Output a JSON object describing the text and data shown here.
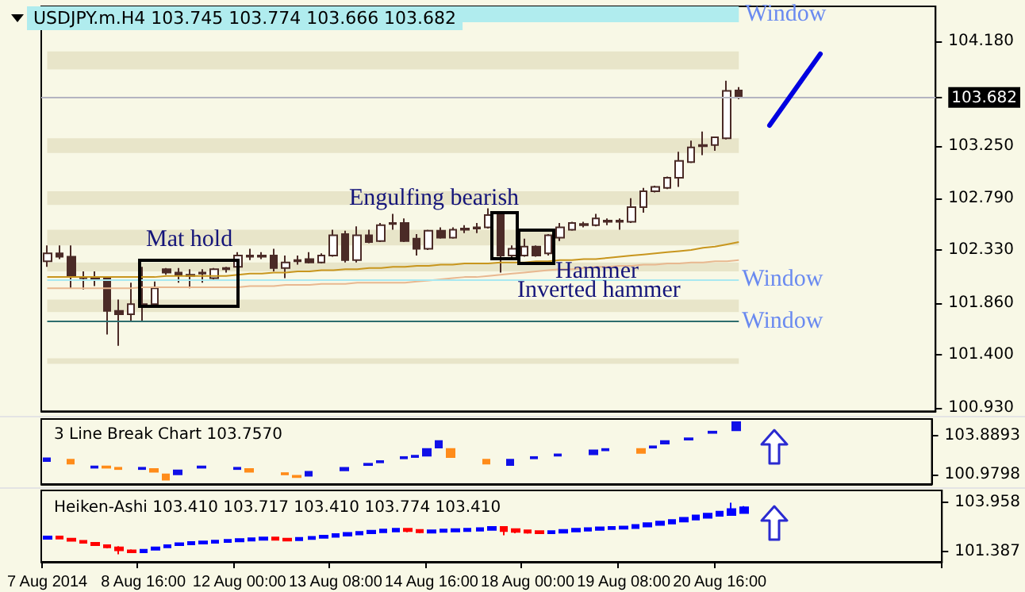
{
  "chart_data": [
    {
      "type": "candlestick",
      "title": "USDJPY.m.H4 103.745 103.774 103.666 103.682",
      "categories": [
        null,
        null,
        null,
        null,
        null,
        null,
        null,
        null,
        null,
        null,
        null,
        null,
        null,
        null,
        null,
        null,
        null,
        null,
        null,
        null,
        null,
        null,
        null,
        null,
        null,
        null,
        null,
        null,
        null,
        null,
        null,
        null,
        null,
        null,
        null,
        null,
        null,
        null,
        null,
        null,
        null,
        null,
        null,
        null,
        null,
        null,
        null,
        null,
        null,
        null,
        null,
        null,
        null,
        null,
        null,
        null,
        null,
        null,
        null,
        null,
        null,
        null,
        null,
        null,
        null,
        null,
        null,
        null,
        null,
        null,
        null,
        null,
        null,
        null,
        null
      ],
      "series": [
        {
          "type": "candlestick",
          "color": "#4b2b27",
          "ohlc": [
            [
              102.23,
              102.37,
              102.18,
              102.3
            ],
            [
              102.3,
              102.37,
              102.25,
              102.27
            ],
            [
              102.27,
              102.37,
              101.99,
              102.09
            ],
            [
              102.09,
              102.14,
              101.98,
              102.08
            ],
            [
              102.08,
              102.14,
              102.01,
              102.07
            ],
            [
              102.08,
              102.09,
              101.58,
              101.79
            ],
            [
              101.79,
              101.89,
              101.48,
              101.76
            ],
            [
              101.76,
              102.04,
              101.69,
              101.85
            ],
            [
              101.85,
              102.18,
              101.69,
              101.83
            ],
            [
              101.85,
              102.05,
              101.84,
              101.99
            ],
            [
              102.16,
              102.17,
              102.11,
              102.13
            ],
            [
              102.13,
              102.17,
              102.04,
              102.11
            ],
            [
              102.11,
              102.16,
              101.99,
              102.1
            ],
            [
              102.13,
              102.16,
              102.04,
              102.12
            ],
            [
              102.08,
              102.17,
              102.07,
              102.16
            ],
            [
              102.16,
              102.18,
              102.13,
              102.17
            ],
            [
              102.18,
              102.31,
              102.17,
              102.28
            ],
            [
              102.28,
              102.34,
              102.24,
              102.27
            ],
            [
              102.27,
              102.31,
              102.25,
              102.28
            ],
            [
              102.28,
              102.34,
              102.14,
              102.17
            ],
            [
              102.17,
              102.28,
              102.08,
              102.22
            ],
            [
              102.23,
              102.28,
              102.2,
              102.24
            ],
            [
              102.25,
              102.31,
              102.21,
              102.22
            ],
            [
              102.22,
              102.3,
              102.21,
              102.28
            ],
            [
              102.28,
              102.51,
              102.27,
              102.46
            ],
            [
              102.47,
              102.5,
              102.22,
              102.24
            ],
            [
              102.24,
              102.54,
              102.22,
              102.46
            ],
            [
              102.46,
              102.51,
              102.39,
              102.4
            ],
            [
              102.41,
              102.57,
              102.4,
              102.55
            ],
            [
              102.56,
              102.65,
              102.51,
              102.57
            ],
            [
              102.57,
              102.61,
              102.4,
              102.41
            ],
            [
              102.43,
              102.47,
              102.28,
              102.34
            ],
            [
              102.34,
              102.51,
              102.33,
              102.5
            ],
            [
              102.5,
              102.53,
              102.43,
              102.44
            ],
            [
              102.44,
              102.53,
              102.43,
              102.51
            ],
            [
              102.51,
              102.55,
              102.48,
              102.52
            ],
            [
              102.52,
              102.57,
              102.48,
              102.53
            ],
            [
              102.53,
              102.7,
              102.52,
              102.64
            ],
            [
              102.64,
              102.66,
              102.13,
              102.28
            ],
            [
              102.28,
              102.37,
              102.25,
              102.34
            ],
            [
              102.28,
              102.43,
              102.27,
              102.36
            ],
            [
              102.36,
              102.37,
              102.27,
              102.28
            ],
            [
              102.3,
              102.47,
              102.28,
              102.46
            ],
            [
              102.44,
              102.57,
              102.41,
              102.53
            ],
            [
              102.51,
              102.58,
              102.5,
              102.57
            ],
            [
              102.55,
              102.58,
              102.53,
              102.56
            ],
            [
              102.55,
              102.65,
              102.54,
              102.61
            ],
            [
              102.58,
              102.61,
              102.55,
              102.59
            ],
            [
              102.59,
              102.61,
              102.51,
              102.58
            ],
            [
              102.58,
              102.79,
              102.57,
              102.71
            ],
            [
              102.71,
              102.88,
              102.66,
              102.85
            ],
            [
              102.85,
              102.9,
              102.84,
              102.89
            ],
            [
              102.88,
              102.98,
              102.87,
              102.97
            ],
            [
              102.97,
              103.2,
              102.89,
              103.12
            ],
            [
              103.11,
              103.3,
              103.1,
              103.24
            ],
            [
              103.25,
              103.38,
              103.17,
              103.26
            ],
            [
              103.26,
              103.33,
              103.21,
              103.33
            ],
            [
              103.32,
              103.83,
              103.31,
              103.74
            ],
            [
              103.745,
              103.774,
              103.666,
              103.682
            ],
            null,
            null,
            null,
            null,
            null,
            null,
            null,
            null,
            null,
            null,
            null,
            null,
            null,
            null,
            null,
            null
          ]
        },
        {
          "type": "line",
          "color": "#c8961e",
          "values": [
            102.09,
            102.09,
            102.09,
            102.09,
            102.09,
            102.09,
            102.09,
            102.09,
            102.09,
            102.09,
            102.1,
            102.1,
            102.1,
            102.1,
            102.1,
            102.1,
            102.11,
            102.12,
            102.12,
            102.13,
            102.13,
            102.14,
            102.14,
            102.15,
            102.15,
            102.16,
            102.16,
            102.17,
            102.17,
            102.18,
            102.18,
            102.19,
            102.19,
            102.2,
            102.2,
            102.21,
            102.21,
            102.21,
            102.22,
            102.22,
            102.22,
            102.23,
            102.23,
            102.24,
            102.24,
            102.25,
            102.25,
            102.26,
            102.27,
            102.28,
            102.29,
            102.3,
            102.31,
            102.32,
            102.33,
            102.35,
            102.36,
            102.38,
            102.4,
            null,
            null,
            null,
            null,
            null,
            null,
            null,
            null,
            null,
            null,
            null,
            null,
            null,
            null,
            null,
            null
          ]
        },
        {
          "type": "line",
          "color": "#e8b890",
          "values": [
            101.99,
            101.99,
            101.99,
            101.99,
            101.99,
            101.99,
            101.99,
            101.99,
            102.0,
            102.0,
            102.0,
            102.0,
            102.0,
            102.0,
            102.0,
            102.0,
            102.0,
            102.01,
            102.01,
            102.01,
            102.02,
            102.02,
            102.02,
            102.03,
            102.03,
            102.03,
            102.04,
            102.04,
            102.04,
            102.04,
            102.04,
            102.05,
            102.06,
            102.07,
            102.08,
            102.09,
            102.09,
            102.1,
            102.11,
            102.12,
            102.13,
            102.14,
            102.15,
            102.16,
            102.16,
            102.17,
            102.18,
            102.18,
            102.19,
            102.19,
            102.2,
            102.2,
            102.21,
            102.21,
            102.22,
            102.22,
            102.23,
            102.23,
            102.24,
            null,
            null,
            null,
            null,
            null,
            null,
            null,
            null,
            null,
            null,
            null,
            null,
            null,
            null,
            null,
            null
          ]
        }
      ],
      "ylim": [
        100.9,
        104.49
      ],
      "yticks": [
        {
          "value": 104.18,
          "label": "104.180"
        },
        {
          "value": 103.682,
          "label": "103.682"
        },
        {
          "value": 103.25,
          "label": "103.250"
        },
        {
          "value": 102.79,
          "label": "102.790"
        },
        {
          "value": 102.33,
          "label": "102.330"
        },
        {
          "value": 101.86,
          "label": "101.860"
        },
        {
          "value": 101.4,
          "label": "101.400"
        },
        {
          "value": 100.93,
          "label": "100.930"
        }
      ],
      "tick_labels": "y",
      "ref_lines": [
        {
          "axis": "y",
          "value": 102.07,
          "label": "Window",
          "color": "#a8e8f0"
        },
        {
          "axis": "y",
          "value": 101.7,
          "label": "Window",
          "color": "#2e6e6e"
        },
        {
          "axis": "y",
          "value": 103.682,
          "color": "#b4b4c0"
        }
      ],
      "bands": [
        {
          "axis": "y",
          "from": 104.35,
          "to": 104.49,
          "label": "Window",
          "color": "#b0ecee"
        },
        {
          "axis": "y",
          "from": 103.93,
          "to": 104.09,
          "color": "#e8e5c9"
        },
        {
          "axis": "y",
          "from": 103.19,
          "to": 103.32,
          "color": "#e8e5c9"
        },
        {
          "axis": "y",
          "from": 102.73,
          "to": 102.85,
          "color": "#e8e5c9"
        },
        {
          "axis": "y",
          "from": 102.37,
          "to": 102.51,
          "color": "#e8e5c9"
        },
        {
          "axis": "y",
          "from": 102.14,
          "to": 102.22,
          "color": "#e8e5c9"
        },
        {
          "axis": "y",
          "from": 101.78,
          "to": 101.89,
          "color": "#e8e5c9"
        },
        {
          "axis": "y",
          "from": 101.32,
          "to": 101.37,
          "color": "#e8e5c9"
        }
      ],
      "annotations": [
        "Mat hold",
        "Engulfing bearish",
        "Hammer",
        "Inverted hammer"
      ]
    },
    {
      "type": "candlestick",
      "title": "3 Line Break Chart 103.7570",
      "categories": [
        null,
        null,
        null,
        null,
        null,
        null,
        null,
        null,
        null,
        null,
        null,
        null,
        null,
        null,
        null,
        null,
        null,
        null,
        null,
        null,
        null,
        null,
        null,
        null,
        null,
        null,
        null,
        null,
        null,
        null,
        null,
        null,
        null,
        null,
        null,
        null,
        null,
        null,
        null,
        null,
        null,
        null,
        null,
        null,
        null,
        null,
        null,
        null,
        null,
        null,
        null,
        null,
        null,
        null,
        null,
        null,
        null,
        null,
        null,
        null,
        null,
        null,
        null,
        null,
        null,
        null,
        null,
        null,
        null,
        null,
        null,
        null,
        null,
        null,
        null
      ],
      "ohlc": [
        [
          102.0,
          102.2,
          102.0,
          102.2
        ],
        null,
        [
          102.1,
          102.1,
          101.8,
          101.8
        ],
        null,
        [
          101.5,
          101.6,
          101.5,
          101.6
        ],
        [
          101.6,
          101.6,
          101.5,
          101.5
        ],
        [
          101.5,
          101.5,
          101.4,
          101.4
        ],
        null,
        [
          101.4,
          101.5,
          101.4,
          101.5
        ],
        [
          101.4,
          101.4,
          101.2,
          101.2
        ],
        [
          101.0,
          101.0,
          100.6,
          100.6
        ],
        [
          101.0,
          101.3,
          101.0,
          101.3
        ],
        null,
        [
          101.5,
          101.6,
          101.5,
          101.6
        ],
        null,
        null,
        [
          101.4,
          101.5,
          101.4,
          101.5
        ],
        [
          101.4,
          101.4,
          101.2,
          101.2
        ],
        null,
        null,
        [
          101.1,
          101.1,
          101.0,
          101.0
        ],
        [
          100.9,
          100.9,
          100.8,
          100.8
        ],
        [
          100.9,
          101.2,
          100.9,
          101.2
        ],
        null,
        null,
        [
          101.3,
          101.5,
          101.3,
          101.5
        ],
        null,
        [
          101.7,
          101.8,
          101.7,
          101.8
        ],
        [
          101.9,
          102.0,
          101.9,
          102.0
        ],
        null,
        [
          102.2,
          102.3,
          102.2,
          102.3
        ],
        [
          102.3,
          102.4,
          102.3,
          102.4
        ],
        [
          102.4,
          102.9,
          102.4,
          102.9
        ],
        [
          103.0,
          103.5,
          103.0,
          103.5
        ],
        [
          102.9,
          102.9,
          102.3,
          102.3
        ],
        null,
        null,
        [
          102.1,
          102.1,
          101.8,
          101.8
        ],
        null,
        [
          101.7,
          102.1,
          101.7,
          102.1
        ],
        null,
        [
          102.2,
          102.3,
          102.2,
          102.3
        ],
        null,
        [
          102.4,
          102.5,
          102.4,
          102.5
        ],
        null,
        null,
        [
          102.5,
          102.8,
          102.5,
          102.8
        ],
        [
          102.8,
          102.9,
          102.8,
          102.9
        ],
        null,
        null,
        [
          102.9,
          102.9,
          102.6,
          102.6
        ],
        [
          103.0,
          103.1,
          103.0,
          103.1
        ],
        [
          103.3,
          103.5,
          103.3,
          103.5
        ],
        null,
        [
          103.6,
          103.7,
          103.6,
          103.7
        ],
        null,
        [
          104.1,
          104.2,
          104.1,
          104.2
        ],
        null,
        [
          104.3,
          104.9,
          104.3,
          104.9
        ],
        null,
        null,
        null,
        null,
        null,
        null,
        null,
        null,
        null,
        null,
        null,
        null,
        null,
        null,
        null,
        null
      ],
      "colors": [
        "#1010e8",
        null,
        "#ff8c1a",
        null,
        "#1010e8",
        "#ff8c1a",
        "#ff8c1a",
        null,
        "#1010e8",
        "#ff8c1a",
        "#ff8c1a",
        "#1010e8",
        null,
        "#1010e8",
        null,
        null,
        "#1010e8",
        "#ff8c1a",
        null,
        null,
        "#ff8c1a",
        "#ff8c1a",
        "#1010e8",
        null,
        null,
        "#1010e8",
        null,
        "#1010e8",
        "#1010e8",
        null,
        "#1010e8",
        "#1010e8",
        "#1010e8",
        "#1010e8",
        "#ff8c1a",
        null,
        null,
        "#ff8c1a",
        null,
        "#1010e8",
        null,
        "#1010e8",
        null,
        "#1010e8",
        null,
        null,
        "#1010e8",
        "#1010e8",
        null,
        null,
        "#ff8c1a",
        "#1010e8",
        "#1010e8",
        null,
        "#1010e8",
        null,
        "#1010e8",
        null,
        "#1010e8",
        null,
        null,
        null,
        null,
        null,
        null,
        null,
        null,
        null,
        null,
        null,
        null,
        null,
        null,
        null,
        null
      ],
      "ylim": [
        100.28,
        105.14
      ],
      "yticks": [
        {
          "value": 103.8893,
          "label": "103.8893"
        },
        {
          "value": 100.9798,
          "label": "100.9798"
        }
      ],
      "tick_labels": "y"
    },
    {
      "type": "candlestick",
      "title": "Heiken-Ashi 103.410 103.717 103.410 103.774 103.410",
      "categories": [
        "7 Aug 2014",
        null,
        null,
        null,
        null,
        null,
        null,
        null,
        "8 Aug 16:00",
        null,
        null,
        null,
        null,
        null,
        null,
        null,
        "12 Aug 00:00",
        null,
        null,
        null,
        null,
        null,
        null,
        null,
        "13 Aug 08:00",
        null,
        null,
        null,
        null,
        null,
        null,
        null,
        "14 Aug 16:00",
        null,
        null,
        null,
        null,
        null,
        null,
        null,
        "18 Aug 00:00",
        null,
        null,
        null,
        null,
        null,
        null,
        null,
        "19 Aug 08:00",
        null,
        null,
        null,
        null,
        null,
        null,
        null,
        "20 Aug 16:00",
        null,
        null,
        null,
        null,
        null,
        null,
        null,
        null,
        null,
        null,
        null,
        null,
        null,
        null,
        null,
        null,
        null,
        null
      ],
      "ohlc": [
        [
          102.05,
          102.22,
          102.02,
          102.18
        ],
        [
          102.18,
          102.2,
          102.02,
          102.06
        ],
        [
          102.06,
          102.1,
          101.92,
          101.95
        ],
        [
          101.95,
          101.98,
          101.8,
          101.84
        ],
        [
          101.84,
          101.88,
          101.7,
          101.72
        ],
        [
          101.72,
          101.76,
          101.55,
          101.6
        ],
        [
          101.6,
          101.66,
          101.24,
          101.45
        ],
        [
          101.45,
          101.5,
          101.3,
          101.34
        ],
        [
          101.34,
          101.52,
          101.32,
          101.48
        ],
        [
          101.48,
          101.64,
          101.46,
          101.6
        ],
        [
          101.6,
          101.76,
          101.58,
          101.72
        ],
        [
          101.72,
          101.86,
          101.7,
          101.82
        ],
        [
          101.76,
          101.9,
          101.74,
          101.88
        ],
        [
          101.8,
          101.94,
          101.78,
          101.92
        ],
        [
          101.84,
          101.98,
          101.82,
          101.96
        ],
        [
          101.88,
          102.02,
          101.86,
          102.0
        ],
        [
          101.92,
          102.06,
          101.9,
          102.04
        ],
        [
          101.96,
          102.1,
          101.94,
          102.08
        ],
        [
          102.0,
          102.14,
          101.98,
          102.12
        ],
        [
          102.12,
          102.14,
          101.96,
          102.0
        ],
        [
          102.06,
          102.08,
          101.92,
          101.96
        ],
        [
          101.98,
          102.12,
          101.96,
          102.1
        ],
        [
          102.04,
          102.18,
          102.02,
          102.16
        ],
        [
          102.1,
          102.24,
          102.08,
          102.22
        ],
        [
          102.16,
          102.32,
          102.14,
          102.3
        ],
        [
          102.22,
          102.38,
          102.2,
          102.36
        ],
        [
          102.28,
          102.44,
          102.26,
          102.42
        ],
        [
          102.34,
          102.5,
          102.32,
          102.48
        ],
        [
          102.4,
          102.56,
          102.38,
          102.54
        ],
        [
          102.44,
          102.6,
          102.42,
          102.58
        ],
        [
          102.58,
          102.6,
          102.4,
          102.46
        ],
        [
          102.52,
          102.54,
          102.34,
          102.4
        ],
        [
          102.38,
          102.52,
          102.36,
          102.5
        ],
        [
          102.42,
          102.56,
          102.4,
          102.54
        ],
        [
          102.44,
          102.58,
          102.42,
          102.56
        ],
        [
          102.46,
          102.6,
          102.44,
          102.58
        ],
        [
          102.48,
          102.64,
          102.46,
          102.62
        ],
        [
          102.52,
          102.7,
          102.5,
          102.68
        ],
        [
          102.68,
          102.7,
          102.24,
          102.46
        ],
        [
          102.56,
          102.58,
          102.34,
          102.42
        ],
        [
          102.5,
          102.52,
          102.32,
          102.38
        ],
        [
          102.46,
          102.48,
          102.3,
          102.34
        ],
        [
          102.34,
          102.48,
          102.32,
          102.46
        ],
        [
          102.38,
          102.54,
          102.36,
          102.52
        ],
        [
          102.44,
          102.6,
          102.42,
          102.58
        ],
        [
          102.48,
          102.64,
          102.46,
          102.62
        ],
        [
          102.52,
          102.68,
          102.5,
          102.66
        ],
        [
          102.56,
          102.7,
          102.54,
          102.68
        ],
        [
          102.58,
          102.72,
          102.56,
          102.7
        ],
        [
          102.62,
          102.8,
          102.6,
          102.78
        ],
        [
          102.7,
          102.9,
          102.68,
          102.88
        ],
        [
          102.78,
          102.98,
          102.76,
          102.96
        ],
        [
          102.86,
          103.06,
          102.84,
          103.04
        ],
        [
          102.96,
          103.18,
          102.94,
          103.16
        ],
        [
          103.06,
          103.3,
          103.04,
          103.28
        ],
        [
          103.16,
          103.4,
          103.14,
          103.38
        ],
        [
          103.26,
          103.5,
          103.24,
          103.48
        ],
        [
          103.3,
          103.95,
          103.28,
          103.62
        ],
        [
          103.41,
          103.774,
          103.41,
          103.717
        ],
        null,
        null,
        null,
        null,
        null,
        null,
        null,
        null,
        null,
        null,
        null,
        null,
        null,
        null,
        null,
        null
      ],
      "colors": [
        "#0000ff",
        "#ff0000",
        "#ff0000",
        "#ff0000",
        "#ff0000",
        "#ff0000",
        "#ff0000",
        "#ff0000",
        "#0000ff",
        "#0000ff",
        "#0000ff",
        "#0000ff",
        "#0000ff",
        "#0000ff",
        "#0000ff",
        "#0000ff",
        "#0000ff",
        "#0000ff",
        "#0000ff",
        "#ff0000",
        "#ff0000",
        "#0000ff",
        "#0000ff",
        "#0000ff",
        "#0000ff",
        "#0000ff",
        "#0000ff",
        "#0000ff",
        "#0000ff",
        "#0000ff",
        "#ff0000",
        "#ff0000",
        "#0000ff",
        "#0000ff",
        "#0000ff",
        "#0000ff",
        "#0000ff",
        "#0000ff",
        "#ff0000",
        "#ff0000",
        "#ff0000",
        "#ff0000",
        "#0000ff",
        "#0000ff",
        "#0000ff",
        "#0000ff",
        "#0000ff",
        "#0000ff",
        "#0000ff",
        "#0000ff",
        "#0000ff",
        "#0000ff",
        "#0000ff",
        "#0000ff",
        "#0000ff",
        "#0000ff",
        "#0000ff",
        "#0000ff",
        "#0000ff",
        null,
        null,
        null,
        null,
        null,
        null,
        null,
        null,
        null,
        null,
        null,
        null,
        null,
        null,
        null,
        null
      ],
      "ylim": [
        100.84,
        104.6
      ],
      "yticks": [
        {
          "value": 103.958,
          "label": "103.958"
        },
        {
          "value": 101.387,
          "label": "101.387"
        }
      ]
    }
  ]
}
